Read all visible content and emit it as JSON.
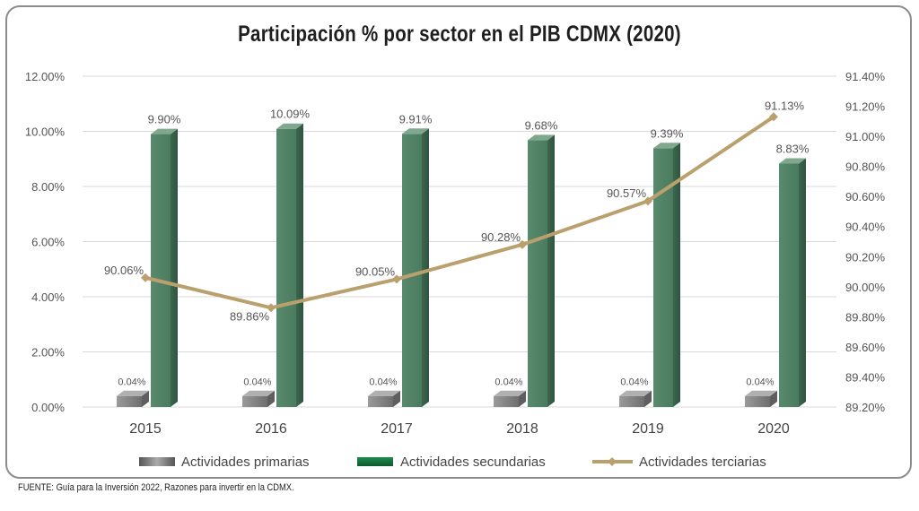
{
  "chart_data": {
    "type": "bar",
    "title": "Participación % por sector en el PIB CDMX (2020)",
    "categories": [
      "2015",
      "2016",
      "2017",
      "2018",
      "2019",
      "2020"
    ],
    "series": [
      {
        "name": "Actividades primarias",
        "type": "bar",
        "axis": "left",
        "values": [
          0.04,
          0.04,
          0.04,
          0.04,
          0.04,
          0.04
        ],
        "labels": [
          "0.04%",
          "0.04%",
          "0.04%",
          "0.04%",
          "0.04%",
          "0.04%"
        ],
        "color": "#7a7a7a"
      },
      {
        "name": "Actividades secundarias",
        "type": "bar",
        "axis": "left",
        "values": [
          9.9,
          10.09,
          9.91,
          9.68,
          9.39,
          8.83
        ],
        "labels": [
          "9.90%",
          "10.09%",
          "9.91%",
          "9.68%",
          "9.39%",
          "8.83%"
        ],
        "color": "#4d7d61"
      },
      {
        "name": "Actividades terciarias",
        "type": "line",
        "axis": "right",
        "values": [
          90.06,
          89.86,
          90.05,
          90.28,
          90.57,
          91.13
        ],
        "labels": [
          "90.06%",
          "89.86%",
          "90.05%",
          "90.28%",
          "90.57%",
          "91.13%"
        ],
        "color": "#b9a06c"
      }
    ],
    "y_left": {
      "min": 0,
      "max": 12,
      "ticks": [
        "0.00%",
        "2.00%",
        "4.00%",
        "6.00%",
        "8.00%",
        "10.00%",
        "12.00%"
      ]
    },
    "y_right": {
      "min": 89.2,
      "max": 91.4,
      "ticks": [
        "89.20%",
        "89.40%",
        "89.60%",
        "89.80%",
        "90.00%",
        "90.20%",
        "90.40%",
        "90.60%",
        "90.80%",
        "91.00%",
        "91.20%",
        "91.40%"
      ]
    },
    "grid": true,
    "legend_position": "bottom"
  },
  "source_note": "FUENTE: Guía para la Inversión 2022, Razones para invertir en la CDMX."
}
